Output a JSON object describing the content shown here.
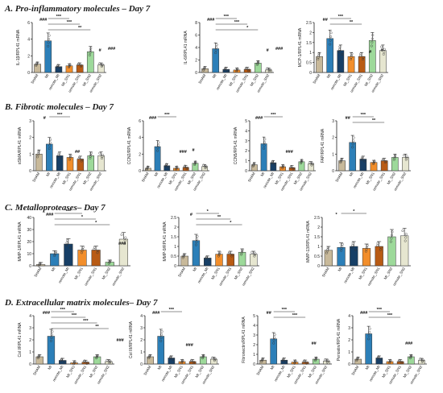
{
  "sections": [
    {
      "title": "A. Pro-inflammatory molecules – Day 7"
    },
    {
      "title": "B. Fibrotic molecules – Day 7"
    },
    {
      "title": "C. Metalloproteases– Day 7"
    },
    {
      "title": "D. Extracellular matrix molecules– Day 7"
    }
  ],
  "colors": {
    "SHAM": "#c8b99a",
    "MI": "#2c7fb8",
    "remote_MI": "#173f66",
    "MI_SN1": "#f28e2b",
    "remote_SN1": "#b85b14",
    "MI_SN2": "#9dd99a",
    "remote_SN2": "#e6e6d0"
  },
  "chart_data": [
    {
      "type": "bar",
      "section": 0,
      "ylabel": "IL-1β/RPL41 mRNA",
      "ylim": [
        0,
        6
      ],
      "yticks": [
        0,
        2,
        4,
        6
      ],
      "categories": [
        "SHAM",
        "MI",
        "remote_MI",
        "MI_SN1",
        "remote_SN1",
        "MI_SN2",
        "remote_SN2"
      ],
      "values": [
        1.0,
        3.8,
        0.7,
        0.8,
        0.9,
        2.5,
        0.9
      ],
      "annotations": [
        "###",
        "***",
        "***",
        "**",
        "#",
        "###"
      ]
    },
    {
      "type": "bar",
      "section": 0,
      "ylabel": "IL-6/RPL41 mRNA",
      "ylim": [
        0,
        8
      ],
      "yticks": [
        0,
        2,
        4,
        6,
        8
      ],
      "categories": [
        "SHAM",
        "MI",
        "remote_MI",
        "MI_SN1",
        "remote_SN1",
        "MI_SN2",
        "remote_SN2"
      ],
      "values": [
        0.6,
        3.8,
        0.5,
        0.4,
        0.5,
        1.5,
        0.4
      ],
      "annotations": [
        "###",
        "***",
        "***",
        "*",
        "#",
        "###"
      ]
    },
    {
      "type": "bar",
      "section": 0,
      "ylabel": "MCP-1/RPL41 mRNA",
      "ylim": [
        0,
        2.5
      ],
      "yticks": [
        0,
        0.5,
        1.0,
        1.5,
        2.0,
        2.5
      ],
      "categories": [
        "SHAM",
        "MI",
        "remote_MI",
        "MI_SN1",
        "remote_SN1",
        "MI_SN2",
        "remote_SN2"
      ],
      "values": [
        0.8,
        1.7,
        1.1,
        0.8,
        0.8,
        1.6,
        1.1
      ],
      "annotations": [
        "##",
        "***",
        "**",
        "#",
        "#"
      ]
    },
    {
      "type": "bar",
      "section": 1,
      "ylabel": "αSMA/RPL41 mRNA",
      "ylim": [
        0,
        3
      ],
      "yticks": [
        0,
        1,
        2,
        3
      ],
      "categories": [
        "SHAM",
        "MI",
        "remote_MI",
        "MI_SN1",
        "remote_SN1",
        "MI_SN2",
        "remote_SN2"
      ],
      "values": [
        1.0,
        1.6,
        0.9,
        0.8,
        0.7,
        0.9,
        0.9
      ],
      "annotations": [
        "#",
        "***",
        "##"
      ]
    },
    {
      "type": "bar",
      "section": 1,
      "ylabel": "CCN2/RPL41 mRNA",
      "ylim": [
        0,
        6
      ],
      "yticks": [
        0,
        2,
        4,
        6
      ],
      "categories": [
        "SHAM",
        "MI",
        "remote_MI",
        "MI_SN1",
        "remote_SN1",
        "MI_SN2",
        "remote_SN2"
      ],
      "values": [
        0.3,
        2.9,
        0.6,
        0.3,
        0.4,
        0.9,
        0.5
      ],
      "annotations": [
        "###",
        "***",
        "###",
        "#"
      ]
    },
    {
      "type": "bar",
      "section": 1,
      "ylabel": "CCN5/RPL41 mRNA",
      "ylim": [
        0,
        5
      ],
      "yticks": [
        0,
        1,
        2,
        3,
        4,
        5
      ],
      "categories": [
        "SHAM",
        "MI",
        "remote_MI",
        "MI_SN1",
        "remote_SN1",
        "MI_SN2",
        "remote_SN2"
      ],
      "values": [
        0.6,
        2.7,
        0.8,
        0.4,
        0.3,
        0.9,
        0.7
      ],
      "annotations": [
        "###",
        "***",
        "###"
      ]
    },
    {
      "type": "bar",
      "section": 1,
      "ylabel": "FAP/RPL41 mRNA",
      "ylim": [
        0,
        3
      ],
      "yticks": [
        0,
        1,
        2,
        3
      ],
      "categories": [
        "SHAM",
        "MI",
        "remote_MI",
        "MI_SN1",
        "remote_SN1",
        "MI_SN2",
        "remote_SN2"
      ],
      "values": [
        0.6,
        1.7,
        0.7,
        0.5,
        0.6,
        0.8,
        0.8
      ],
      "annotations": [
        "##",
        "***",
        "**"
      ]
    },
    {
      "type": "bar",
      "section": 2,
      "ylabel": "MMP-1/RPL41 mRNA",
      "ylim": [
        0,
        40
      ],
      "yticks": [
        0,
        10,
        20,
        30,
        40
      ],
      "categories": [
        "SHAM",
        "MI",
        "remote_MI",
        "MI_SN1",
        "remote_SN1",
        "MI_SN2",
        "remote_SN2"
      ],
      "values": [
        1,
        10,
        18,
        13,
        13,
        3,
        22
      ],
      "annotations": [
        "###",
        "***",
        "*",
        "*",
        "###"
      ]
    },
    {
      "type": "bar",
      "section": 2,
      "ylabel": "MMP-9/RPL41 mRNA",
      "ylim": [
        0,
        2.5
      ],
      "yticks": [
        0,
        0.5,
        1.0,
        1.5,
        2.0,
        2.5
      ],
      "categories": [
        "SHAM",
        "MI",
        "remote_MI",
        "MI_SN1",
        "remote_SN1",
        "MI_SN2",
        "remote_SN2"
      ],
      "values": [
        0.5,
        1.3,
        0.4,
        0.6,
        0.6,
        0.7,
        0.6
      ],
      "annotations": [
        "#",
        "*",
        "**",
        "*"
      ]
    },
    {
      "type": "bar",
      "section": 2,
      "ylabel": "MMP-13/RPL41 mRNA",
      "ylim": [
        0,
        2.5
      ],
      "yticks": [
        0,
        0.5,
        1.0,
        1.5,
        2.0,
        2.5
      ],
      "categories": [
        "SHAM",
        "MI",
        "remote_MI",
        "MI_SN1",
        "remote_SN1",
        "MI_SN2",
        "remote_SN2"
      ],
      "values": [
        0.8,
        0.95,
        1.0,
        0.9,
        1.0,
        1.5,
        1.55
      ],
      "annotations": [
        "*",
        "*"
      ]
    },
    {
      "type": "bar",
      "section": 3,
      "ylabel": "Col I/RPL41 mRNA",
      "ylim": [
        0,
        4
      ],
      "yticks": [
        0,
        1,
        2,
        3,
        4
      ],
      "categories": [
        "SHAM",
        "MI",
        "remote_MI",
        "MI_SN1",
        "remote_SN1",
        "MI_SN2",
        "remote_SN2"
      ],
      "values": [
        0.6,
        2.3,
        0.3,
        0.1,
        0.15,
        0.6,
        0.2
      ],
      "annotations": [
        "###",
        "***",
        "***",
        "***",
        "**",
        "###"
      ]
    },
    {
      "type": "bar",
      "section": 3,
      "ylabel": "Col III/RPL41 mRNA",
      "ylim": [
        0,
        4
      ],
      "yticks": [
        0,
        1,
        2,
        3,
        4
      ],
      "categories": [
        "SHAM",
        "MI",
        "remote_MI",
        "MI_SN1",
        "remote_SN1",
        "MI_SN2",
        "remote_SN2"
      ],
      "values": [
        0.6,
        2.3,
        0.5,
        0.2,
        0.2,
        0.6,
        0.4
      ],
      "annotations": [
        "###",
        "***",
        "###"
      ]
    },
    {
      "type": "bar",
      "section": 3,
      "ylabel": "Fibronectin/RPL41 mRNA",
      "ylim": [
        0,
        5
      ],
      "yticks": [
        0,
        1,
        2,
        3,
        4,
        5
      ],
      "categories": [
        "SHAM",
        "MI",
        "remote_MI",
        "MI_SN1",
        "remote_SN1",
        "MI_SN2",
        "remote_SN2"
      ],
      "values": [
        0.4,
        2.6,
        0.4,
        0.2,
        0.2,
        0.5,
        0.3
      ],
      "annotations": [
        "##",
        "***",
        "***",
        "##"
      ]
    },
    {
      "type": "bar",
      "section": 3,
      "ylabel": "Periostin/RPL41 mRNA",
      "ylim": [
        0,
        4
      ],
      "yticks": [
        0,
        1,
        2,
        3,
        4
      ],
      "categories": [
        "SHAM",
        "MI",
        "remote_MI",
        "MI_SN1",
        "remote_SN1",
        "MI_SN2",
        "remote_SN2"
      ],
      "values": [
        0.4,
        2.5,
        0.5,
        0.2,
        0.2,
        0.6,
        0.3
      ],
      "annotations": [
        "###",
        "***",
        "***",
        "###"
      ]
    }
  ]
}
